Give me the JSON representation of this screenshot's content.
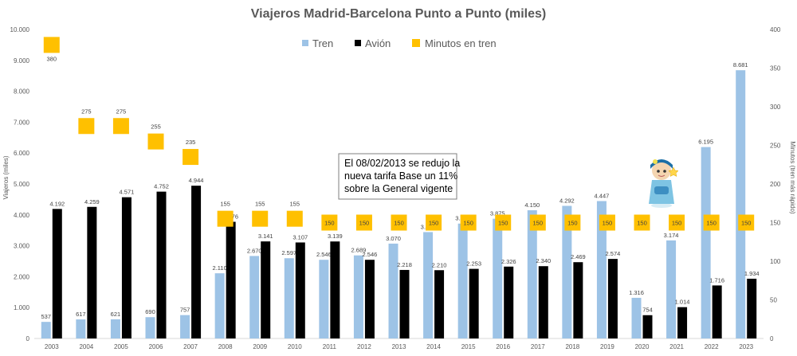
{
  "chart_data": {
    "type": "bar",
    "title": "Viajeros Madrid-Barcelona Punto a Punto (miles)",
    "ylabel": "Viajeros (miles)",
    "y2label": "Minutos (tren más rápido)",
    "ylim": [
      0,
      10000
    ],
    "y2lim": [
      0,
      400
    ],
    "yticks": [
      "0",
      "1.000",
      "2.000",
      "3.000",
      "4.000",
      "5.000",
      "6.000",
      "7.000",
      "8.000",
      "9.000",
      "10.000"
    ],
    "y2ticks": [
      "0",
      "50",
      "100",
      "150",
      "200",
      "250",
      "300",
      "350",
      "400"
    ],
    "categories": [
      "2003",
      "2004",
      "2005",
      "2006",
      "2007",
      "2008",
      "2009",
      "2010",
      "2011",
      "2012",
      "2013",
      "2014",
      "2015",
      "2016",
      "2017",
      "2018",
      "2019",
      "2020",
      "2021",
      "2022",
      "2023"
    ],
    "series": [
      {
        "name": "Tren",
        "kind": "bar",
        "color": "#9DC3E6",
        "values": [
          537,
          617,
          621,
          690,
          757,
          2110,
          2670,
          2597,
          2546,
          2689,
          3070,
          3443,
          3718,
          3875,
          4150,
          4292,
          4447,
          1316,
          3174,
          6195,
          8681
        ],
        "labels": [
          "537",
          "617",
          "621",
          "690",
          "757",
          "2.110",
          "2.670",
          "2.597",
          "2.546",
          "2.689",
          "3.070",
          "3.443",
          "3.718",
          "3.875",
          "4.150",
          "4.292",
          "4.447",
          "1.316",
          "3.174",
          "6.195",
          "8.681"
        ]
      },
      {
        "name": "Avión",
        "kind": "bar",
        "color": "#000000",
        "values": [
          4192,
          4259,
          4571,
          4752,
          4944,
          3776,
          3141,
          3107,
          3139,
          2546,
          2218,
          2210,
          2253,
          2326,
          2340,
          2469,
          2574,
          754,
          1014,
          1716,
          1934
        ],
        "labels": [
          "4.192",
          "4.259",
          "4.571",
          "4.752",
          "4.944",
          "3.776",
          "3.141",
          "3.107",
          "3.139",
          "2.546",
          "2.218",
          "2.210",
          "2.253",
          "2.326",
          "2.340",
          "2.469",
          "2.574",
          "754",
          "1.014",
          "1.716",
          "1.934"
        ]
      },
      {
        "name": "Minutos en tren",
        "kind": "marker",
        "axis": "secondary",
        "color": "#FFC000",
        "values": [
          380,
          275,
          275,
          255,
          235,
          155,
          155,
          155,
          150,
          150,
          150,
          150,
          150,
          150,
          150,
          150,
          150,
          150,
          150,
          150,
          150
        ],
        "labels": [
          "380",
          "275",
          "275",
          "255",
          "235",
          "155",
          "155",
          "155",
          "150",
          "150",
          "150",
          "150",
          "150",
          "150",
          "150",
          "150",
          "150",
          "150",
          "150",
          "150",
          "150"
        ]
      }
    ],
    "legend_position": "top-right",
    "annotation": {
      "lines": [
        "El 08/02/2013 se redujo la",
        "nueva tarifa Base un 11%",
        "sobre la General vigente"
      ]
    },
    "grid": false
  }
}
